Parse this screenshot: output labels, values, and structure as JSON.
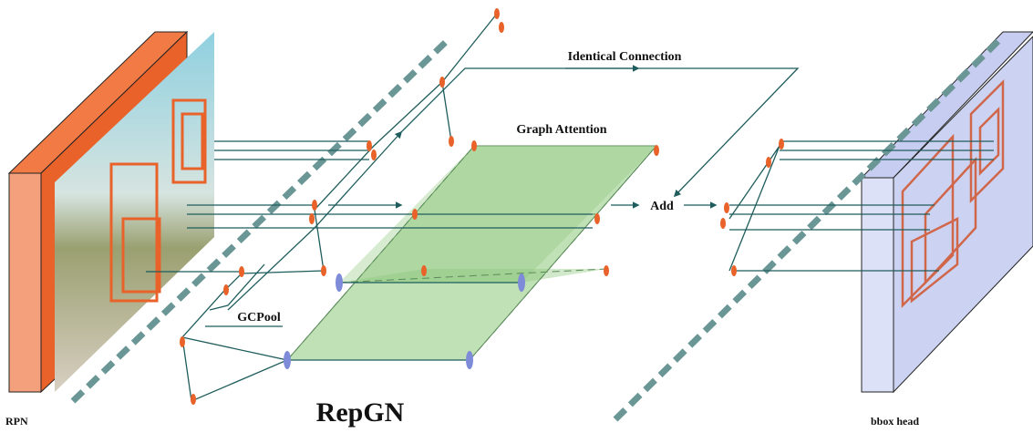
{
  "labels": {
    "identical_connection": "Identical Connection",
    "graph_attention": "Graph Attention",
    "add": "Add",
    "gcpool": "GCPool",
    "rpn": "RPN",
    "repgn": "RepGN",
    "bbox_head": "bbox head"
  }
}
